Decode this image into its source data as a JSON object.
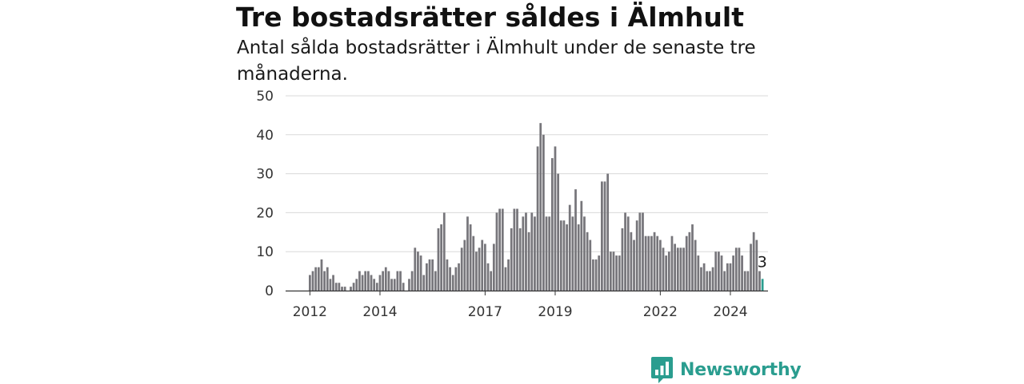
{
  "title": "Tre bostadsrätter såldes i Älmhult",
  "subtitle": "Antal sålda bostadsrätter i Älmhult under de senaste tre månaderna.",
  "brand": {
    "name": "Newsworthy",
    "icon": "newsworthy-logo-icon",
    "color": "#2a9d8f"
  },
  "colors": {
    "bar": "#77767b",
    "highlight": "#2a9d8f",
    "grid": "#d9d9d9",
    "axis": "#333333"
  },
  "chart_data": {
    "type": "bar",
    "x_unit": "month",
    "start": "2012-01",
    "values": [
      4,
      5,
      6,
      6,
      8,
      5,
      6,
      3,
      4,
      2,
      2,
      1,
      1,
      0,
      1,
      2,
      3,
      5,
      4,
      5,
      5,
      4,
      3,
      2,
      4,
      5,
      6,
      5,
      3,
      3,
      5,
      5,
      2,
      0,
      3,
      5,
      11,
      10,
      9,
      4,
      7,
      8,
      8,
      5,
      16,
      17,
      20,
      8,
      6,
      4,
      6,
      7,
      11,
      13,
      19,
      17,
      14,
      10,
      11,
      13,
      12,
      7,
      5,
      12,
      20,
      21,
      21,
      6,
      8,
      16,
      21,
      21,
      16,
      19,
      20,
      15,
      20,
      19,
      37,
      43,
      40,
      19,
      19,
      34,
      37,
      30,
      18,
      18,
      17,
      22,
      19,
      26,
      17,
      23,
      19,
      15,
      13,
      8,
      8,
      9,
      28,
      28,
      30,
      10,
      10,
      9,
      9,
      16,
      20,
      19,
      15,
      13,
      18,
      20,
      20,
      14,
      14,
      14,
      15,
      14,
      13,
      11,
      9,
      10,
      14,
      12,
      11,
      11,
      11,
      14,
      15,
      17,
      13,
      9,
      6,
      7,
      5,
      5,
      6,
      10,
      10,
      9,
      5,
      7,
      7,
      9,
      11,
      11,
      9,
      5,
      5,
      12,
      15,
      13,
      5,
      3
    ],
    "highlight_last": 1,
    "annotation": "3",
    "x_ticks": [
      2012,
      2014,
      2017,
      2019,
      2022,
      2024
    ],
    "y_ticks": [
      0,
      10,
      20,
      30,
      40,
      50
    ],
    "ylim": [
      0,
      50
    ],
    "grid": true,
    "legend": "none",
    "xlabel": "",
    "ylabel": ""
  }
}
